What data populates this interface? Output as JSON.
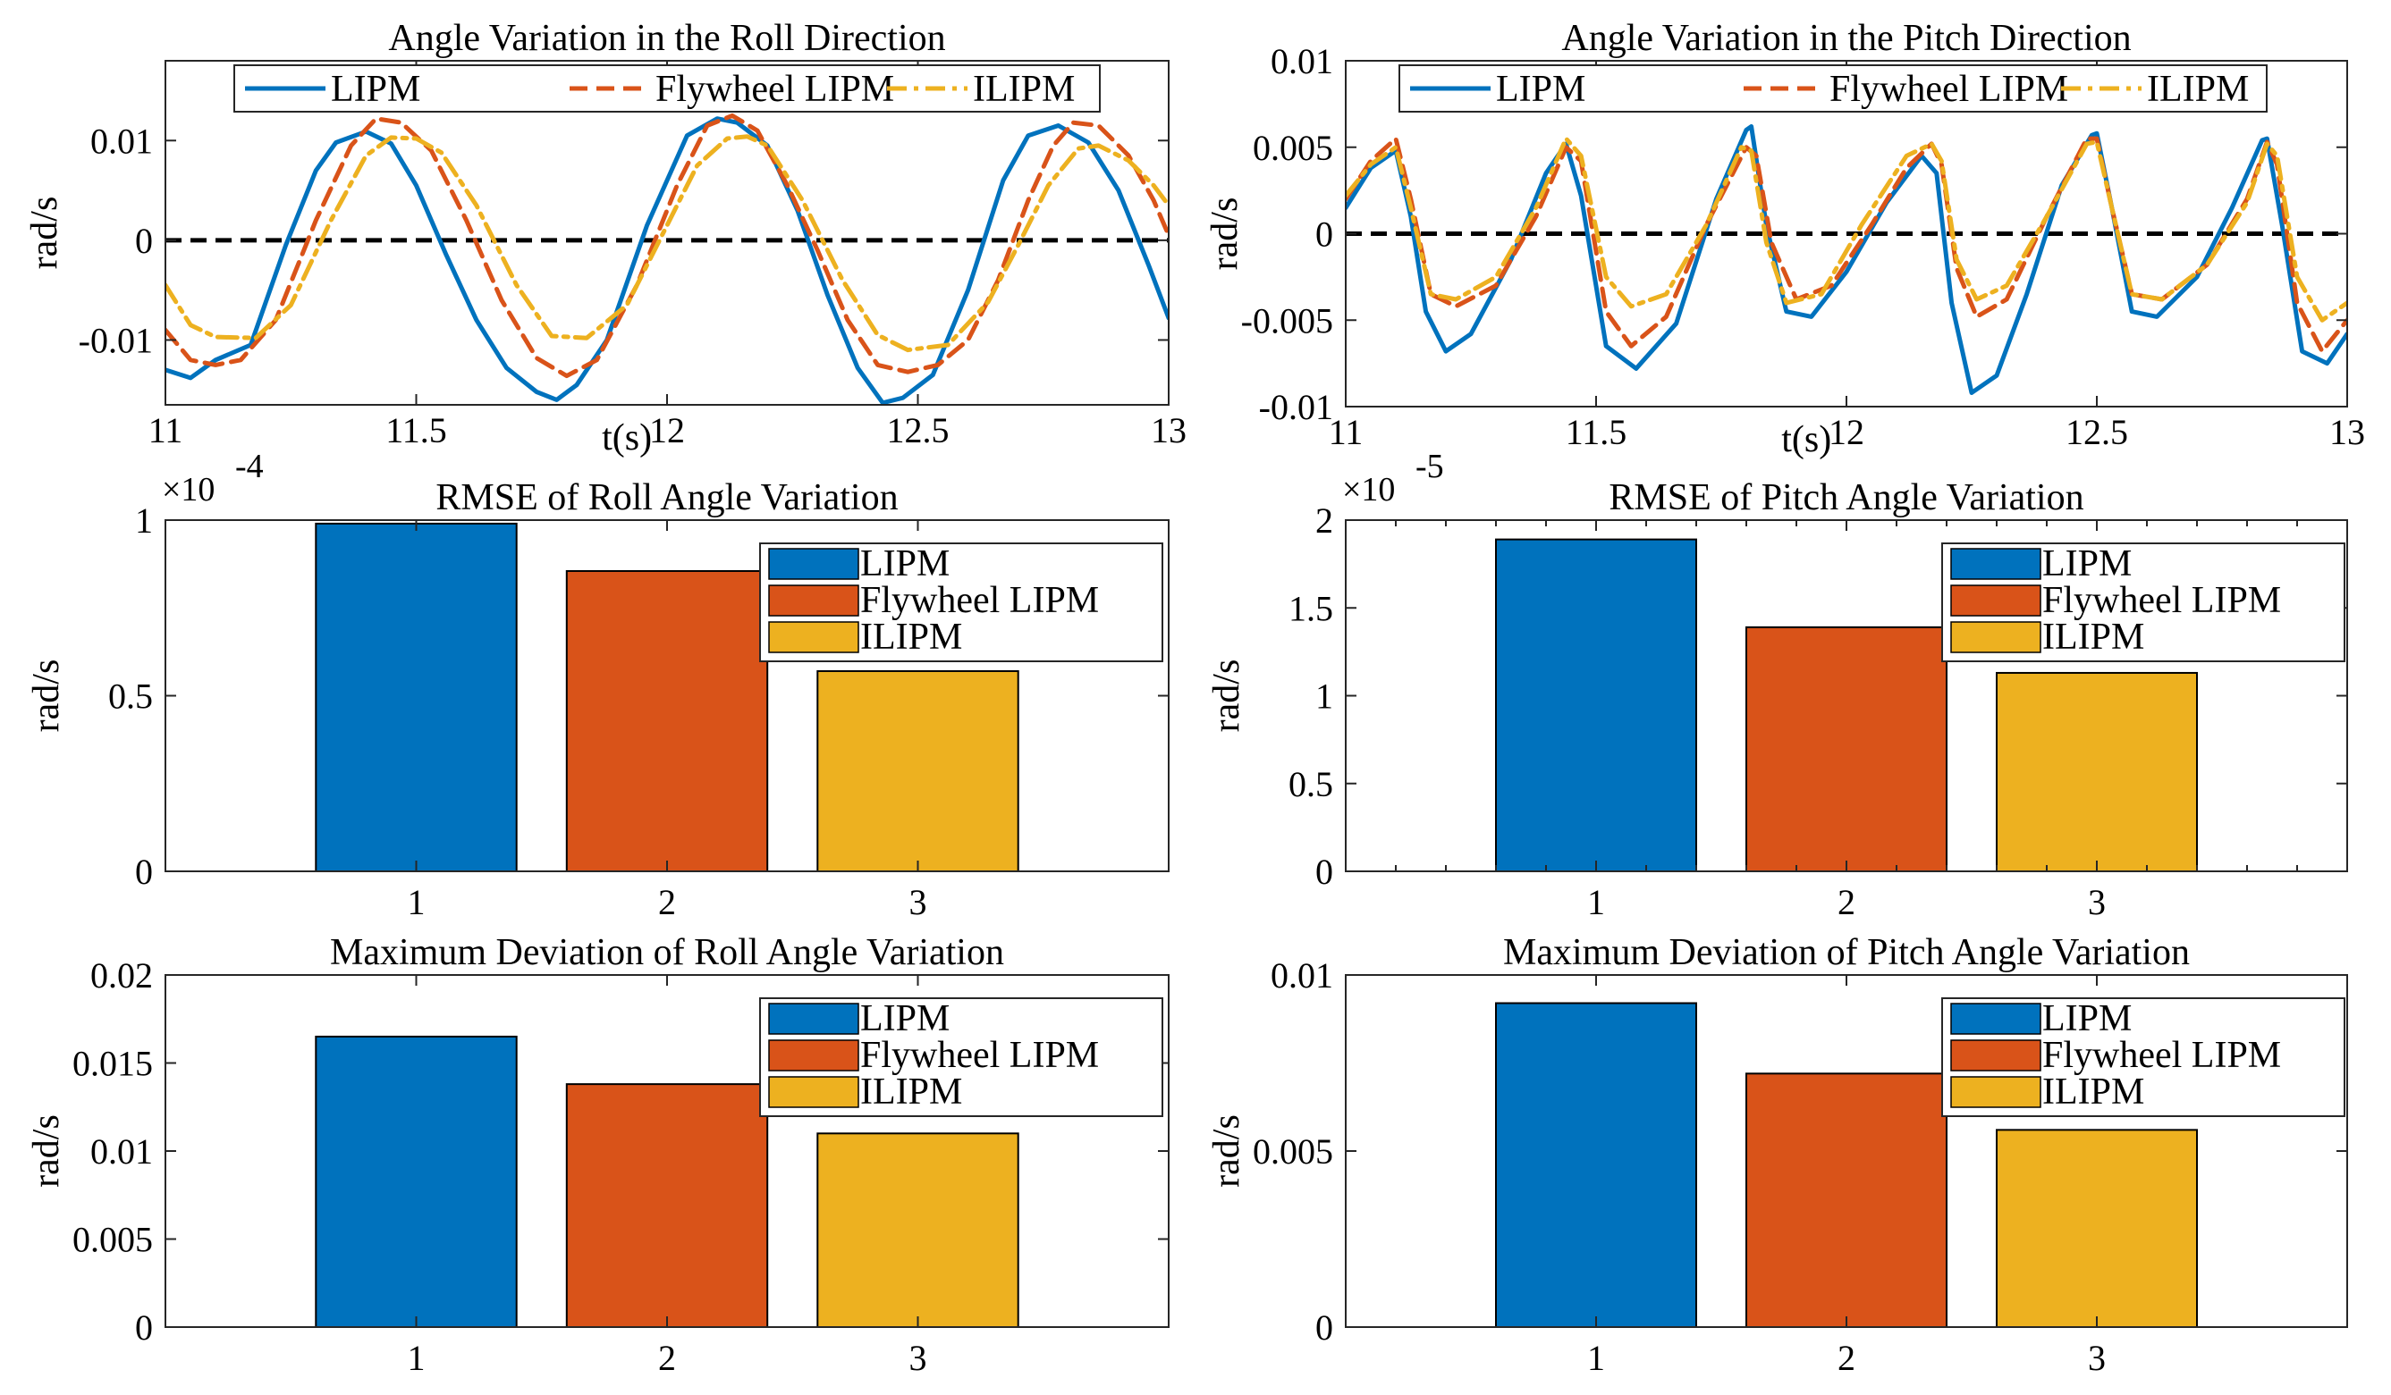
{
  "colors": {
    "lipm": "#0072BD",
    "flywheel": "#D95319",
    "ilipm": "#EDB120",
    "zero_line": "#000000"
  },
  "chart_data": [
    {
      "id": "roll_angle",
      "type": "line",
      "title": "Angle Variation in the Roll Direction",
      "xlabel": "t(s)",
      "ylabel": "rad/s",
      "xlim": [
        11,
        13
      ],
      "ylim": [
        -0.0165,
        0.018
      ],
      "xticks": [
        11,
        11.5,
        12,
        12.5,
        13
      ],
      "xtick_labels": [
        "11",
        "11.5",
        "12",
        "12.5",
        "13"
      ],
      "yticks": [
        -0.01,
        0,
        0.01
      ],
      "ytick_labels": [
        "-0.01",
        "0",
        "0.01"
      ],
      "legend_position": "top",
      "legend_orientation": "horizontal",
      "reference_line": 0,
      "series": [
        {
          "name": "LIPM",
          "style": "solid",
          "x": [
            11,
            11.05,
            11.1,
            11.17,
            11.24,
            11.3,
            11.34,
            11.4,
            11.45,
            11.5,
            11.56,
            11.62,
            11.68,
            11.74,
            11.78,
            11.82,
            11.88,
            11.96,
            12.04,
            12.1,
            12.14,
            12.2,
            12.26,
            12.32,
            12.38,
            12.43,
            12.47,
            12.53,
            12.6,
            12.67,
            12.72,
            12.78,
            12.84,
            12.9,
            12.96,
            13
          ],
          "y": [
            -0.013,
            -0.0138,
            -0.012,
            -0.0105,
            -0.0005,
            0.007,
            0.0098,
            0.0109,
            0.0097,
            0.0055,
            -0.0015,
            -0.008,
            -0.0128,
            -0.0152,
            -0.016,
            -0.0145,
            -0.01,
            0.0015,
            0.0105,
            0.0122,
            0.0118,
            0.0095,
            0.003,
            -0.0055,
            -0.0128,
            -0.0163,
            -0.0158,
            -0.0135,
            -0.005,
            0.006,
            0.0105,
            0.0115,
            0.0098,
            0.005,
            -0.0025,
            -0.0078
          ]
        },
        {
          "name": "Flywheel LIPM",
          "style": "dashed",
          "x": [
            11,
            11.05,
            11.1,
            11.15,
            11.22,
            11.3,
            11.37,
            11.42,
            11.47,
            11.53,
            11.6,
            11.67,
            11.74,
            11.8,
            11.86,
            11.94,
            12.02,
            12.08,
            12.13,
            12.18,
            12.24,
            12.3,
            12.36,
            12.42,
            12.48,
            12.54,
            12.6,
            12.66,
            12.72,
            12.77,
            12.81,
            12.86,
            12.92,
            12.97,
            13
          ],
          "y": [
            -0.009,
            -0.012,
            -0.0125,
            -0.012,
            -0.008,
            0.002,
            0.0095,
            0.0122,
            0.0118,
            0.009,
            0.002,
            -0.006,
            -0.0118,
            -0.0136,
            -0.012,
            -0.0045,
            0.0055,
            0.0115,
            0.0125,
            0.011,
            0.0055,
            -0.001,
            -0.008,
            -0.0125,
            -0.0132,
            -0.0125,
            -0.01,
            -0.004,
            0.004,
            0.0095,
            0.0118,
            0.0115,
            0.0085,
            0.004,
            0.0005
          ]
        },
        {
          "name": "ILIPM",
          "style": "dashdot",
          "x": [
            11,
            11.05,
            11.1,
            11.18,
            11.25,
            11.33,
            11.4,
            11.45,
            11.5,
            11.55,
            11.62,
            11.7,
            11.77,
            11.84,
            11.92,
            12,
            12.06,
            12.12,
            12.16,
            12.2,
            12.27,
            12.35,
            12.42,
            12.48,
            12.56,
            12.64,
            12.7,
            12.76,
            12.82,
            12.86,
            12.92,
            12.97,
            13
          ],
          "y": [
            -0.0045,
            -0.0085,
            -0.0097,
            -0.0098,
            -0.0065,
            0.002,
            0.0085,
            0.0103,
            0.0102,
            0.0088,
            0.0035,
            -0.0045,
            -0.0096,
            -0.0098,
            -0.0065,
            0.0015,
            0.0075,
            0.0102,
            0.0104,
            0.0095,
            0.004,
            -0.004,
            -0.0095,
            -0.011,
            -0.0105,
            -0.0062,
            -0.0005,
            0.0055,
            0.0092,
            0.0095,
            0.008,
            0.0055,
            0.0035
          ]
        }
      ]
    },
    {
      "id": "pitch_angle",
      "type": "line",
      "title": "Angle Variation in the Pitch Direction",
      "xlabel": "t(s)",
      "ylabel": "rad/s",
      "xlim": [
        11,
        13
      ],
      "ylim": [
        -0.01,
        0.01
      ],
      "xticks": [
        11,
        11.5,
        12,
        12.5,
        13
      ],
      "xtick_labels": [
        "11",
        "11.5",
        "12",
        "12.5",
        "13"
      ],
      "yticks": [
        -0.01,
        -0.005,
        0,
        0.005,
        0.01
      ],
      "ytick_labels": [
        "-0.01",
        "-0.005",
        "0",
        "0.005",
        "0.01"
      ],
      "legend_position": "top",
      "legend_orientation": "horizontal",
      "reference_line": 0,
      "series": [
        {
          "name": "LIPM",
          "style": "solid",
          "x": [
            11,
            11.05,
            11.1,
            11.13,
            11.16,
            11.2,
            11.25,
            11.33,
            11.4,
            11.44,
            11.47,
            11.52,
            11.58,
            11.66,
            11.74,
            11.8,
            11.81,
            11.84,
            11.88,
            11.93,
            12,
            12.08,
            12.15,
            12.18,
            12.21,
            12.25,
            12.3,
            12.36,
            12.43,
            12.49,
            12.5,
            12.53,
            12.57,
            12.62,
            12.7,
            12.77,
            12.83,
            12.84,
            12.87,
            12.91,
            12.96,
            13
          ],
          "y": [
            0.0015,
            0.0038,
            0.0048,
            0.001,
            -0.0045,
            -0.0068,
            -0.0058,
            -0.0015,
            0.0035,
            0.0052,
            0.0022,
            -0.0065,
            -0.0078,
            -0.0052,
            0.002,
            0.006,
            0.0062,
            0.0005,
            -0.0045,
            -0.0048,
            -0.0022,
            0.0018,
            0.0045,
            0.0035,
            -0.004,
            -0.0092,
            -0.0082,
            -0.0035,
            0.0028,
            0.0057,
            0.0058,
            0.0015,
            -0.0045,
            -0.0048,
            -0.0025,
            0.0015,
            0.0054,
            0.0055,
            0.0005,
            -0.0068,
            -0.0075,
            -0.0058
          ]
        },
        {
          "name": "Flywheel LIPM",
          "style": "dashed",
          "x": [
            11,
            11.05,
            11.1,
            11.13,
            11.17,
            11.22,
            11.3,
            11.38,
            11.44,
            11.47,
            11.52,
            11.57,
            11.64,
            11.72,
            11.8,
            11.82,
            11.85,
            11.9,
            11.97,
            12.05,
            12.12,
            12.17,
            12.19,
            12.22,
            12.26,
            12.32,
            12.4,
            12.48,
            12.5,
            12.53,
            12.57,
            12.63,
            12.72,
            12.8,
            12.84,
            12.86,
            12.9,
            12.95,
            13
          ],
          "y": [
            0.002,
            0.0042,
            0.0055,
            0.002,
            -0.0035,
            -0.0042,
            -0.003,
            0.001,
            0.005,
            0.0042,
            -0.0045,
            -0.0065,
            -0.0048,
            0.0005,
            0.005,
            0.0045,
            -0.0005,
            -0.0038,
            -0.003,
            0.0005,
            0.0038,
            0.0052,
            0.004,
            -0.002,
            -0.0048,
            -0.0038,
            0.001,
            0.0055,
            0.0055,
            0.0015,
            -0.0035,
            -0.0038,
            -0.0018,
            0.002,
            0.0053,
            0.004,
            -0.004,
            -0.0068,
            -0.005
          ]
        },
        {
          "name": "ILIPM",
          "style": "dashdot",
          "x": [
            11,
            11.05,
            11.1,
            11.13,
            11.17,
            11.22,
            11.3,
            11.38,
            11.44,
            11.47,
            11.52,
            11.57,
            11.64,
            11.72,
            11.79,
            11.81,
            11.84,
            11.88,
            11.95,
            12.03,
            12.12,
            12.17,
            12.19,
            12.22,
            12.26,
            12.32,
            12.4,
            12.48,
            12.5,
            12.53,
            12.57,
            12.63,
            12.72,
            12.8,
            12.84,
            12.86,
            12.9,
            12.95,
            13
          ],
          "y": [
            0.0022,
            0.004,
            0.005,
            0.0015,
            -0.0035,
            -0.0038,
            -0.0025,
            0.0015,
            0.0055,
            0.0045,
            -0.0025,
            -0.0042,
            -0.0035,
            0.0005,
            0.005,
            0.0048,
            -0.0005,
            -0.004,
            -0.0035,
            0.0005,
            0.0045,
            0.0052,
            0.0042,
            -0.0015,
            -0.0038,
            -0.003,
            0.001,
            0.0052,
            0.0053,
            0.0015,
            -0.0035,
            -0.0038,
            -0.0018,
            0.0018,
            0.0052,
            0.0045,
            -0.0025,
            -0.005,
            -0.004
          ]
        }
      ]
    },
    {
      "id": "rmse_roll",
      "type": "bar",
      "title": "RMSE of Roll Angle Variation",
      "ylabel": "rad/s",
      "exponent_label": "×10",
      "exponent_power": "-4",
      "categories": [
        "1",
        "2",
        "3"
      ],
      "series": [
        {
          "name": "LIPM",
          "value": 0.99
        },
        {
          "name": "Flywheel LIPM",
          "value": 0.855
        },
        {
          "name": "ILIPM",
          "value": 0.57
        }
      ],
      "xlim": [
        0,
        4
      ],
      "ylim": [
        0,
        1
      ],
      "yticks": [
        0,
        0.5,
        1
      ],
      "ytick_labels": [
        "0",
        "0.5",
        "1"
      ],
      "legend_position": "top-right",
      "legend_orientation": "vertical"
    },
    {
      "id": "rmse_pitch",
      "type": "bar",
      "title": "RMSE of Pitch Angle Variation",
      "ylabel": "rad/s",
      "exponent_label": "×10",
      "exponent_power": "-5",
      "categories": [
        "1",
        "2",
        "3"
      ],
      "series": [
        {
          "name": "LIPM",
          "value": 1.89
        },
        {
          "name": "Flywheel LIPM",
          "value": 1.39
        },
        {
          "name": "ILIPM",
          "value": 1.13
        }
      ],
      "xlim": [
        0,
        4
      ],
      "ylim": [
        0,
        2
      ],
      "yticks": [
        0,
        0.5,
        1,
        1.5,
        2
      ],
      "ytick_labels": [
        "0",
        "0.5",
        "1",
        "1.5",
        "2"
      ],
      "xminor_ticks": [
        0.2,
        0.4,
        0.6,
        0.8,
        1.2,
        1.4,
        1.6,
        1.8,
        2.2,
        2.4,
        2.6,
        2.8,
        3.2,
        3.4,
        3.6,
        3.8
      ],
      "legend_position": "top-right",
      "legend_orientation": "vertical"
    },
    {
      "id": "maxdev_roll",
      "type": "bar",
      "title": "Maximum Deviation of Roll Angle Variation",
      "ylabel": "rad/s",
      "categories": [
        "1",
        "2",
        "3"
      ],
      "series": [
        {
          "name": "LIPM",
          "value": 0.0165
        },
        {
          "name": "Flywheel LIPM",
          "value": 0.0138
        },
        {
          "name": "ILIPM",
          "value": 0.011
        }
      ],
      "xlim": [
        0,
        4
      ],
      "ylim": [
        0,
        0.02
      ],
      "yticks": [
        0,
        0.005,
        0.01,
        0.015,
        0.02
      ],
      "ytick_labels": [
        "0",
        "0.005",
        "0.01",
        "0.015",
        "0.02"
      ],
      "legend_position": "top-right",
      "legend_orientation": "vertical"
    },
    {
      "id": "maxdev_pitch",
      "type": "bar",
      "title": "Maximum Deviation of Pitch Angle Variation",
      "ylabel": "rad/s",
      "categories": [
        "1",
        "2",
        "3"
      ],
      "series": [
        {
          "name": "LIPM",
          "value": 0.0092
        },
        {
          "name": "Flywheel LIPM",
          "value": 0.0072
        },
        {
          "name": "ILIPM",
          "value": 0.0056
        }
      ],
      "xlim": [
        0,
        4
      ],
      "ylim": [
        0,
        0.01
      ],
      "yticks": [
        0,
        0.005,
        0.01
      ],
      "ytick_labels": [
        "0",
        "0.005",
        "0.01"
      ],
      "legend_position": "top-right",
      "legend_orientation": "vertical"
    }
  ]
}
